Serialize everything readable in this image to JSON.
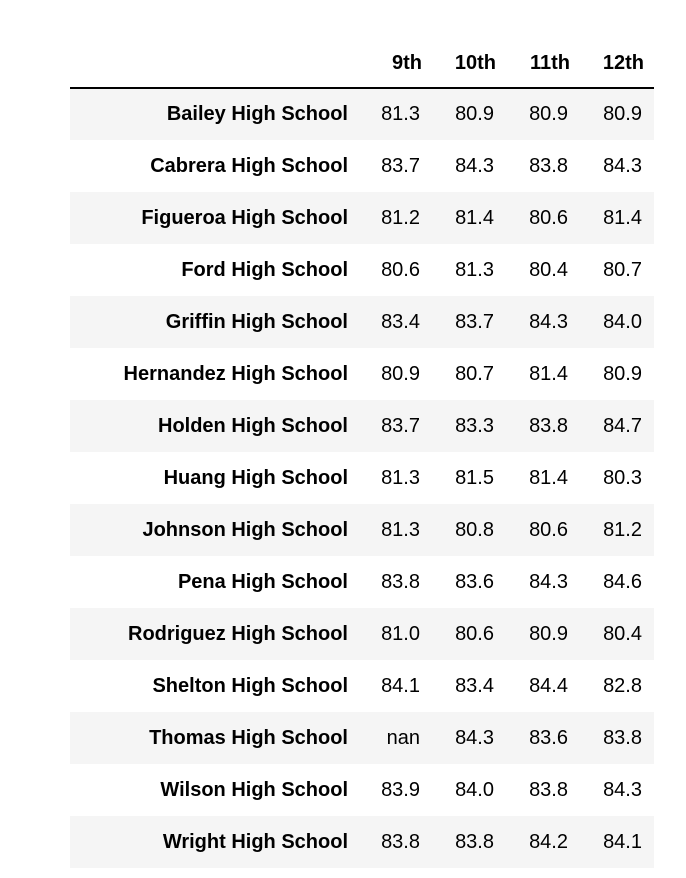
{
  "table": {
    "columns": [
      "9th",
      "10th",
      "11th",
      "12th"
    ],
    "rows": [
      {
        "school": "Bailey High School",
        "values": [
          "81.3",
          "80.9",
          "80.9",
          "80.9"
        ]
      },
      {
        "school": "Cabrera High School",
        "values": [
          "83.7",
          "84.3",
          "83.8",
          "84.3"
        ]
      },
      {
        "school": "Figueroa High School",
        "values": [
          "81.2",
          "81.4",
          "80.6",
          "81.4"
        ]
      },
      {
        "school": "Ford High School",
        "values": [
          "80.6",
          "81.3",
          "80.4",
          "80.7"
        ]
      },
      {
        "school": "Griffin High School",
        "values": [
          "83.4",
          "83.7",
          "84.3",
          "84.0"
        ]
      },
      {
        "school": "Hernandez High School",
        "values": [
          "80.9",
          "80.7",
          "81.4",
          "80.9"
        ]
      },
      {
        "school": "Holden High School",
        "values": [
          "83.7",
          "83.3",
          "83.8",
          "84.7"
        ]
      },
      {
        "school": "Huang High School",
        "values": [
          "81.3",
          "81.5",
          "81.4",
          "80.3"
        ]
      },
      {
        "school": "Johnson High School",
        "values": [
          "81.3",
          "80.8",
          "80.6",
          "81.2"
        ]
      },
      {
        "school": "Pena High School",
        "values": [
          "83.8",
          "83.6",
          "84.3",
          "84.6"
        ]
      },
      {
        "school": "Rodriguez High School",
        "values": [
          "81.0",
          "80.6",
          "80.9",
          "80.4"
        ]
      },
      {
        "school": "Shelton High School",
        "values": [
          "84.1",
          "83.4",
          "84.4",
          "82.8"
        ]
      },
      {
        "school": "Thomas High School",
        "values": [
          "nan",
          "84.3",
          "83.6",
          "83.8"
        ]
      },
      {
        "school": "Wilson High School",
        "values": [
          "83.9",
          "84.0",
          "83.8",
          "84.3"
        ]
      },
      {
        "school": "Wright High School",
        "values": [
          "83.8",
          "83.8",
          "84.2",
          "84.1"
        ]
      }
    ]
  }
}
